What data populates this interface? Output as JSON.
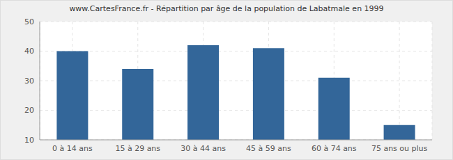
{
  "chart_data": {
    "type": "bar",
    "title": "www.CartesFrance.fr - Répartition par âge de la population de Labatmale en 1999",
    "categories": [
      "0 à 14 ans",
      "15 à 29 ans",
      "30 à 44 ans",
      "45 à 59 ans",
      "60 à 74 ans",
      "75 ans ou plus"
    ],
    "values": [
      40,
      34,
      42,
      41,
      31,
      15
    ],
    "color": "#336699",
    "ylim": [
      10,
      50
    ],
    "yticks": [
      10,
      20,
      30,
      40,
      50
    ],
    "grid": true
  }
}
